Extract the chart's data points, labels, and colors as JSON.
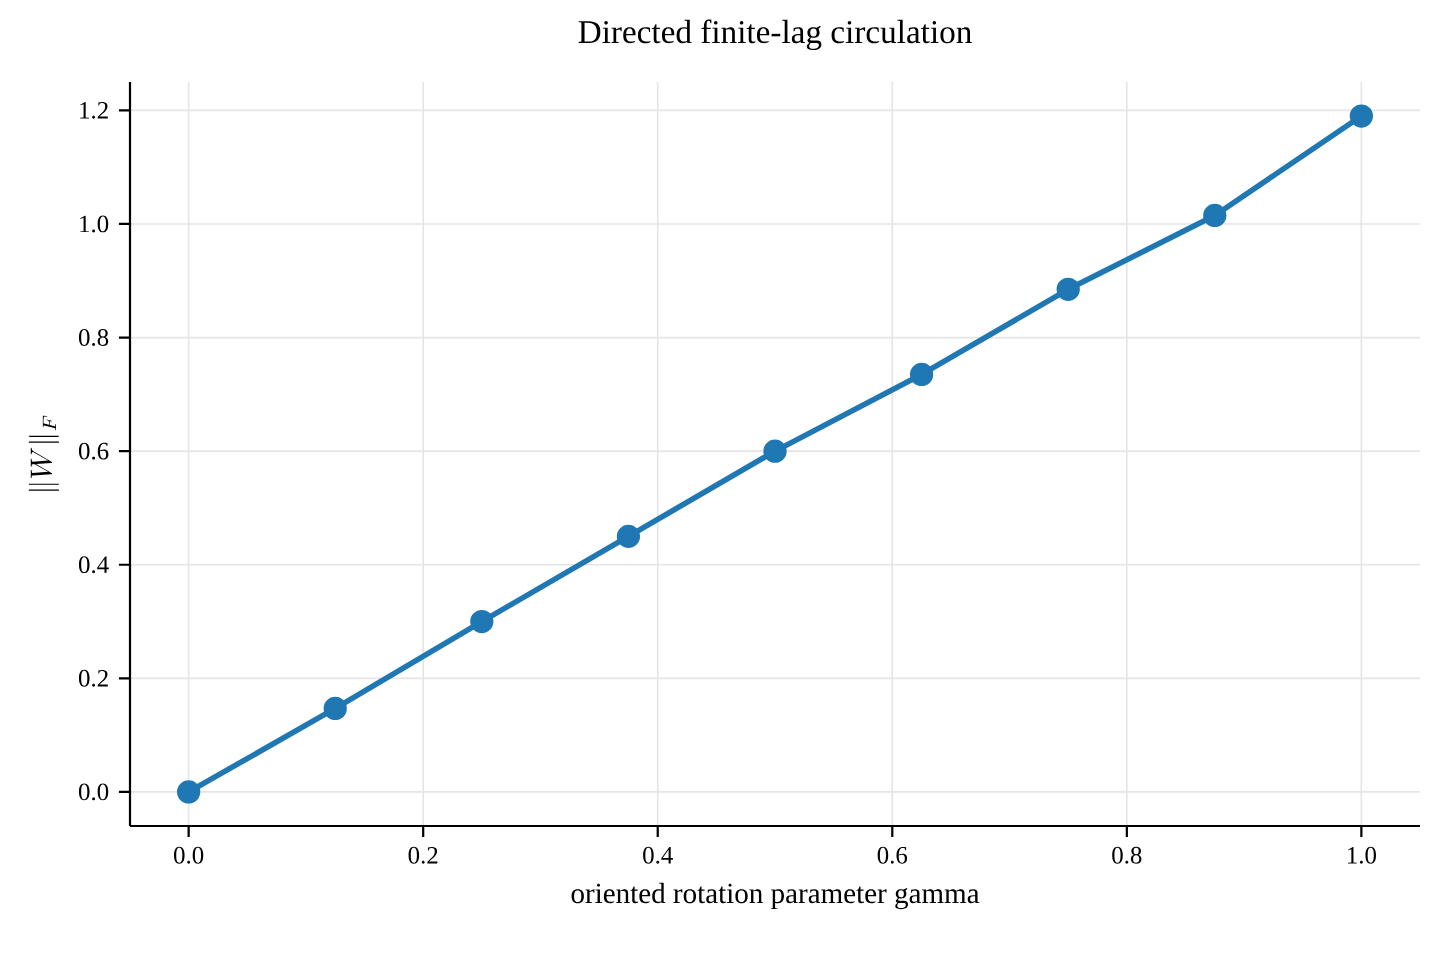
{
  "chart_data": {
    "type": "line",
    "title": "Directed finite-lag circulation",
    "xlabel": "oriented rotation parameter gamma",
    "ylabel": "\\|W\\|_F",
    "x": [
      0,
      0.125,
      0.25,
      0.375,
      0.5,
      0.625,
      0.75,
      0.875,
      1.0
    ],
    "series": [
      {
        "color": "#1f77b4",
        "values": [
          0,
          0.147,
          0.3,
          0.45,
          0.6,
          0.735,
          0.885,
          1.015,
          1.19
        ]
      }
    ],
    "xlim": [
      -0.05,
      1.05
    ],
    "ylim": [
      -0.06,
      1.25
    ],
    "xticks": [
      {
        "value": 0,
        "label": "0.0"
      },
      0.2,
      0.4,
      0.6,
      0.8,
      {
        "value": 1,
        "label": "1.0"
      }
    ],
    "yticks": [
      {
        "value": 0,
        "label": "0.0"
      },
      0.2,
      0.4,
      0.6,
      0.8,
      {
        "value": 1,
        "label": "1.0"
      },
      1.2
    ],
    "grid": true,
    "marker": "circle",
    "line_style": "solid"
  }
}
